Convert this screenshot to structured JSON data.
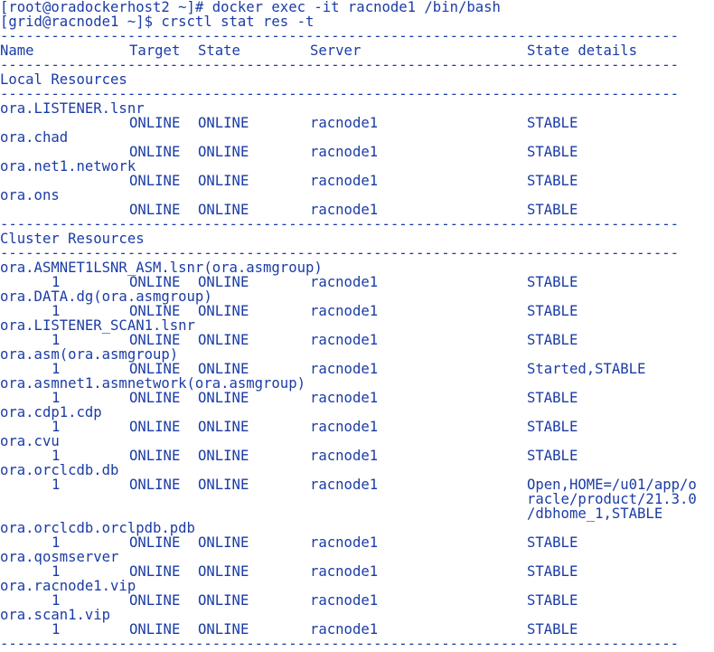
{
  "terminal": {
    "commands": [
      "[root@oradockerhost2 ~]# docker exec -it racnode1 /bin/bash",
      "[grid@racnode1 ~]$ crsctl stat res -t"
    ],
    "separator": "--------------------------------------------------------------------------------",
    "header": [
      "Name",
      "Target",
      "State",
      "Server",
      "State details"
    ],
    "sections": [
      {
        "title": "Local Resources",
        "resources": [
          {
            "name": "ora.LISTENER.lsnr",
            "rows": [
              {
                "target": "ONLINE",
                "state": "ONLINE",
                "server": "racnode1",
                "details": [
                  "STABLE"
                ]
              }
            ]
          },
          {
            "name": "ora.chad",
            "rows": [
              {
                "target": "ONLINE",
                "state": "ONLINE",
                "server": "racnode1",
                "details": [
                  "STABLE"
                ]
              }
            ]
          },
          {
            "name": "ora.net1.network",
            "rows": [
              {
                "target": "ONLINE",
                "state": "ONLINE",
                "server": "racnode1",
                "details": [
                  "STABLE"
                ]
              }
            ]
          },
          {
            "name": "ora.ons",
            "rows": [
              {
                "target": "ONLINE",
                "state": "ONLINE",
                "server": "racnode1",
                "details": [
                  "STABLE"
                ]
              }
            ]
          }
        ]
      },
      {
        "title": "Cluster Resources",
        "resources": [
          {
            "name": "ora.ASMNET1LSNR_ASM.lsnr(ora.asmgroup)",
            "rows": [
              {
                "instance": "1",
                "target": "ONLINE",
                "state": "ONLINE",
                "server": "racnode1",
                "details": [
                  "STABLE"
                ]
              }
            ]
          },
          {
            "name": "ora.DATA.dg(ora.asmgroup)",
            "rows": [
              {
                "instance": "1",
                "target": "ONLINE",
                "state": "ONLINE",
                "server": "racnode1",
                "details": [
                  "STABLE"
                ]
              }
            ]
          },
          {
            "name": "ora.LISTENER_SCAN1.lsnr",
            "rows": [
              {
                "instance": "1",
                "target": "ONLINE",
                "state": "ONLINE",
                "server": "racnode1",
                "details": [
                  "STABLE"
                ]
              }
            ]
          },
          {
            "name": "ora.asm(ora.asmgroup)",
            "rows": [
              {
                "instance": "1",
                "target": "ONLINE",
                "state": "ONLINE",
                "server": "racnode1",
                "details": [
                  "Started,STABLE"
                ]
              }
            ]
          },
          {
            "name": "ora.asmnet1.asmnetwork(ora.asmgroup)",
            "rows": [
              {
                "instance": "1",
                "target": "ONLINE",
                "state": "ONLINE",
                "server": "racnode1",
                "details": [
                  "STABLE"
                ]
              }
            ]
          },
          {
            "name": "ora.cdp1.cdp",
            "rows": [
              {
                "instance": "1",
                "target": "ONLINE",
                "state": "ONLINE",
                "server": "racnode1",
                "details": [
                  "STABLE"
                ]
              }
            ]
          },
          {
            "name": "ora.cvu",
            "rows": [
              {
                "instance": "1",
                "target": "ONLINE",
                "state": "ONLINE",
                "server": "racnode1",
                "details": [
                  "STABLE"
                ]
              }
            ]
          },
          {
            "name": "ora.orclcdb.db",
            "rows": [
              {
                "instance": "1",
                "target": "ONLINE",
                "state": "ONLINE",
                "server": "racnode1",
                "details": [
                  "Open,HOME=/u01/app/o",
                  "racle/product/21.3.0",
                  "/dbhome_1,STABLE"
                ]
              }
            ]
          },
          {
            "name": "ora.orclcdb.orclpdb.pdb",
            "rows": [
              {
                "instance": "1",
                "target": "ONLINE",
                "state": "ONLINE",
                "server": "racnode1",
                "details": [
                  "STABLE"
                ]
              }
            ]
          },
          {
            "name": "ora.qosmserver",
            "rows": [
              {
                "instance": "1",
                "target": "ONLINE",
                "state": "ONLINE",
                "server": "racnode1",
                "details": [
                  "STABLE"
                ]
              }
            ]
          },
          {
            "name": "ora.racnode1.vip",
            "rows": [
              {
                "instance": "1",
                "target": "ONLINE",
                "state": "ONLINE",
                "server": "racnode1",
                "details": [
                  "STABLE"
                ]
              }
            ]
          },
          {
            "name": "ora.scan1.vip",
            "rows": [
              {
                "instance": "1",
                "target": "ONLINE",
                "state": "ONLINE",
                "server": "racnode1",
                "details": [
                  "STABLE"
                ]
              }
            ]
          }
        ]
      }
    ]
  }
}
